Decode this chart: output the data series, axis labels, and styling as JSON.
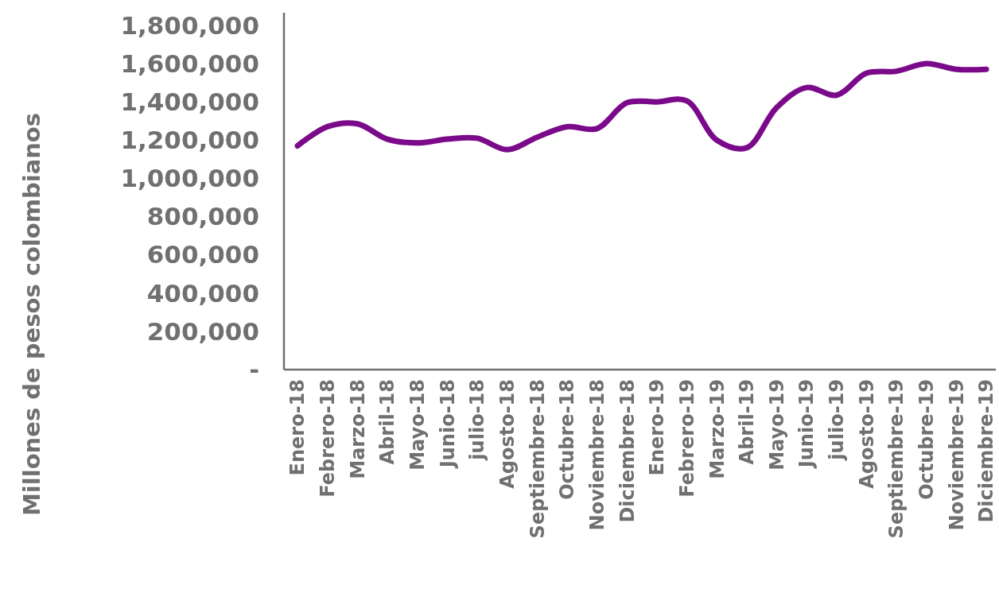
{
  "chart_data": {
    "type": "line",
    "ylabel": "Millones de pesos colombianos",
    "categories": [
      "Enero-18",
      "Febrero-18",
      "Marzo-18",
      "Abril-18",
      "Mayo-18",
      "Junio-18",
      "julio-18",
      "Agosto-18",
      "Septiembre-18",
      "Octubre-18",
      "Noviembre-18",
      "Diciembre-18",
      "Enero-19",
      "Febrero-19",
      "Marzo-19",
      "Abril-19",
      "Mayo-19",
      "Junio-19",
      "julio-19",
      "Agosto-19",
      "Septiembre-19",
      "Octubre-19",
      "Noviembre-19",
      "Diciembre-19"
    ],
    "series": [
      {
        "color": "#7b0a8a",
        "values": [
          1170000,
          1270000,
          1285000,
          1205000,
          1185000,
          1205000,
          1210000,
          1150000,
          1215000,
          1270000,
          1260000,
          1395000,
          1400000,
          1405000,
          1200000,
          1160000,
          1370000,
          1475000,
          1435000,
          1550000,
          1560000,
          1600000,
          1570000,
          1570000
        ]
      }
    ],
    "ylim": [
      0,
      1866000
    ],
    "yticks": [
      {
        "value": 0,
        "label": "-"
      },
      {
        "value": 200000,
        "label": "200,000"
      },
      {
        "value": 400000,
        "label": "400,000"
      },
      {
        "value": 600000,
        "label": "600,000"
      },
      {
        "value": 800000,
        "label": "800,000"
      },
      {
        "value": 1000000,
        "label": "1,000,000"
      },
      {
        "value": 1200000,
        "label": "1,200,000"
      },
      {
        "value": 1400000,
        "label": "1,400,000"
      },
      {
        "value": 1600000,
        "label": "1,600,000"
      },
      {
        "value": 1800000,
        "label": "1,800,000"
      }
    ],
    "grid": false,
    "marker": "none",
    "line_style": "solid"
  }
}
